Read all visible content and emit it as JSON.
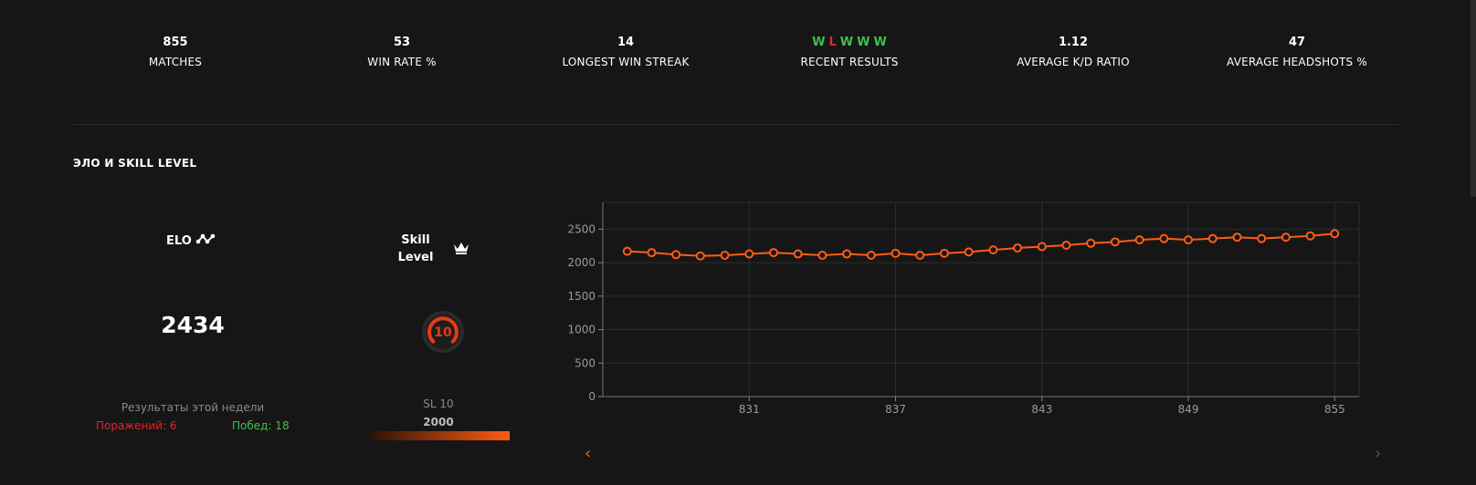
{
  "stats": [
    {
      "value": "855",
      "label": "MATCHES"
    },
    {
      "value": "53",
      "label": "WIN RATE %"
    },
    {
      "value": "14",
      "label": "LONGEST WIN STREAK"
    },
    {
      "value": "",
      "label": "RECENT RESULTS"
    },
    {
      "value": "1.12",
      "label": "AVERAGE K/D RATIO"
    },
    {
      "value": "47",
      "label": "AVERAGE HEADSHOTS %"
    }
  ],
  "recent_results": [
    "W",
    "L",
    "W",
    "W",
    "W"
  ],
  "section_title": "ЭЛО И SKILL LEVEL",
  "elo": {
    "title": "ELO",
    "value": "2434",
    "icon": "trend-icon"
  },
  "week": {
    "title": "Результаты этой недели",
    "losses": "Поражений: 6",
    "wins": "Побед: 18"
  },
  "skill": {
    "title_line1": "Skill",
    "title_line2": "Level",
    "icon": "crown-icon",
    "level": "10",
    "sl_label": "SL 10",
    "sl_elo": "2000",
    "progress": 1.0
  },
  "colors": {
    "accent": "#ff5c14",
    "win": "#3ec14a",
    "loss": "#e0262b",
    "background": "#161616"
  },
  "chart_data": {
    "type": "line",
    "x": [
      826,
      827,
      828,
      829,
      830,
      831,
      832,
      833,
      834,
      835,
      836,
      837,
      838,
      839,
      840,
      841,
      842,
      843,
      844,
      845,
      846,
      847,
      848,
      849,
      850,
      851,
      852,
      853,
      854,
      855
    ],
    "values": [
      2170,
      2150,
      2120,
      2100,
      2110,
      2130,
      2150,
      2130,
      2110,
      2130,
      2110,
      2140,
      2110,
      2140,
      2160,
      2190,
      2220,
      2240,
      2260,
      2290,
      2310,
      2340,
      2360,
      2340,
      2360,
      2380,
      2360,
      2380,
      2400,
      2434
    ],
    "x_ticks": [
      "831",
      "837",
      "843",
      "849",
      "855"
    ],
    "x_tick_values": [
      831,
      837,
      843,
      849,
      855
    ],
    "y_ticks": [
      "0",
      "500",
      "1000",
      "1500",
      "2000",
      "2500"
    ],
    "y_tick_values": [
      0,
      500,
      1000,
      1500,
      2000,
      2500
    ],
    "ylim": [
      0,
      2900
    ],
    "grid": true,
    "line_color": "#ff5c14"
  },
  "nav": {
    "prev": "‹",
    "next": "›"
  }
}
